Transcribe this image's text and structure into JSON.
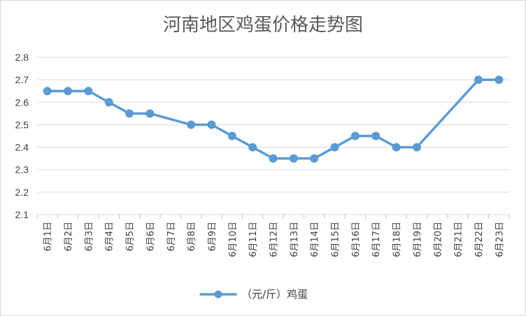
{
  "chart_data": {
    "type": "line",
    "title": "河南地区鸡蛋价格走势图",
    "categories": [
      "6月1日",
      "6月2日",
      "6月3日",
      "6月4日",
      "6月5日",
      "6月6日",
      "6月7日",
      "6月8日",
      "6月9日",
      "6月10日",
      "6月11日",
      "6月12日",
      "6月13日",
      "6月14日",
      "6月15日",
      "6月16日",
      "6月17日",
      "6月18日",
      "6月19日",
      "6月20日",
      "6月21日",
      "6月22日",
      "6月23日"
    ],
    "series": [
      {
        "name": "（元/斤）鸡蛋",
        "color": "#5b9bd5",
        "values": [
          2.65,
          2.65,
          2.65,
          2.6,
          2.55,
          2.55,
          null,
          2.5,
          2.5,
          2.45,
          2.4,
          2.35,
          2.35,
          2.35,
          2.4,
          2.45,
          2.45,
          2.4,
          2.4,
          null,
          null,
          2.7,
          2.7
        ]
      }
    ],
    "ylim": [
      2.1,
      2.8
    ],
    "yticks": [
      "2.1",
      "2.2",
      "2.3",
      "2.4",
      "2.5",
      "2.6",
      "2.7",
      "2.8"
    ],
    "grid": true,
    "legend": "bottom",
    "xlabel": "",
    "ylabel": ""
  }
}
